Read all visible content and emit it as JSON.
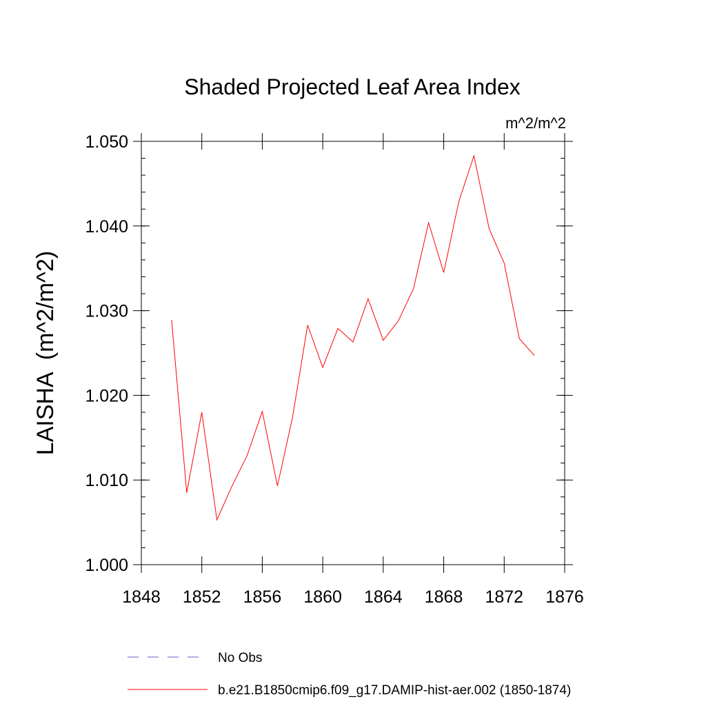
{
  "chart_data": {
    "type": "line",
    "title": "Shaded Projected Leaf Area Index",
    "units": "m^2/m^2",
    "ylabel": "LAISHA  (m^2/m^2)",
    "xlabel": "",
    "xlim": [
      1848,
      1876
    ],
    "ylim": [
      1.0,
      1.05
    ],
    "xticks": [
      1848,
      1852,
      1856,
      1860,
      1864,
      1868,
      1872,
      1876
    ],
    "xtick_labels": [
      "1848",
      "1852",
      "1856",
      "1860",
      "1864",
      "1868",
      "1872",
      "1876"
    ],
    "yticks": [
      1.0,
      1.01,
      1.02,
      1.03,
      1.04,
      1.05
    ],
    "ytick_labels": [
      "1.000",
      "1.010",
      "1.020",
      "1.030",
      "1.040",
      "1.050"
    ],
    "grid": false,
    "legend_position": "bottom",
    "series": [
      {
        "name": "b.e21.B1850cmip6.f09_g17.DAMIP-hist-aer.002 (1850-1874)",
        "color": "#ff0000",
        "dash": "solid",
        "x": [
          1850,
          1851,
          1852,
          1853,
          1854,
          1855,
          1856,
          1857,
          1858,
          1859,
          1860,
          1861,
          1862,
          1863,
          1864,
          1865,
          1866,
          1867,
          1868,
          1869,
          1870,
          1871,
          1872,
          1873,
          1874
        ],
        "y": [
          1.0289,
          1.0085,
          1.018,
          1.0053,
          1.0093,
          1.0129,
          1.0181,
          1.0093,
          1.0174,
          1.0283,
          1.0233,
          1.0279,
          1.0263,
          1.0314,
          1.0265,
          1.0288,
          1.0326,
          1.0404,
          1.0345,
          1.0429,
          1.0483,
          1.0397,
          1.0356,
          1.0267,
          1.0247
        ]
      }
    ],
    "legend": [
      {
        "label": "No Obs",
        "color": "#6a5acd",
        "dash": "dashed"
      },
      {
        "label": "b.e21.B1850cmip6.f09_g17.DAMIP-hist-aer.002 (1850-1874)",
        "color": "#ff0000",
        "dash": "solid"
      }
    ]
  }
}
